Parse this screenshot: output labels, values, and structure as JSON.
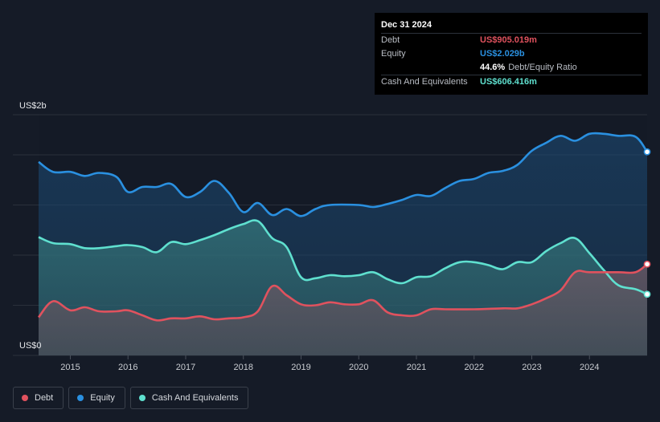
{
  "tooltip": {
    "date": "Dec 31 2024",
    "rows": [
      {
        "label": "Debt",
        "value": "US$905.019m",
        "color": "#e0525e"
      },
      {
        "label": "Equity",
        "value": "US$2.029b",
        "color": "#2a90e0"
      },
      {
        "label": "",
        "value": "44.6%",
        "sub": "Debt/Equity Ratio",
        "color": "#ffffff"
      },
      {
        "label": "Cash And Equivalents",
        "value": "US$606.416m",
        "color": "#5fe0cf"
      }
    ]
  },
  "legend": [
    {
      "label": "Debt",
      "color": "#e0525e"
    },
    {
      "label": "Equity",
      "color": "#2a90e0"
    },
    {
      "label": "Cash And Equivalents",
      "color": "#5fe0cf"
    }
  ],
  "chart_data": {
    "type": "area",
    "y_top_label": "US$2b",
    "y_bottom_label": "US$0",
    "ylim": [
      0,
      2.4
    ],
    "xlim": [
      2014.45,
      2025.0
    ],
    "xticks": [
      "2015",
      "2016",
      "2017",
      "2018",
      "2019",
      "2020",
      "2021",
      "2022",
      "2023",
      "2024"
    ],
    "grid": true,
    "legend_position": "bottom-left",
    "series": [
      {
        "name": "Equity",
        "color": "#2a90e0",
        "points": [
          [
            2014.45,
            1.93
          ],
          [
            2014.7,
            1.83
          ],
          [
            2015.0,
            1.83
          ],
          [
            2015.25,
            1.79
          ],
          [
            2015.5,
            1.82
          ],
          [
            2015.8,
            1.78
          ],
          [
            2016.0,
            1.63
          ],
          [
            2016.25,
            1.68
          ],
          [
            2016.5,
            1.68
          ],
          [
            2016.75,
            1.71
          ],
          [
            2017.0,
            1.58
          ],
          [
            2017.25,
            1.63
          ],
          [
            2017.5,
            1.74
          ],
          [
            2017.75,
            1.62
          ],
          [
            2018.0,
            1.43
          ],
          [
            2018.25,
            1.52
          ],
          [
            2018.5,
            1.4
          ],
          [
            2018.75,
            1.46
          ],
          [
            2019.0,
            1.39
          ],
          [
            2019.25,
            1.46
          ],
          [
            2019.5,
            1.5
          ],
          [
            2020.0,
            1.5
          ],
          [
            2020.25,
            1.48
          ],
          [
            2020.5,
            1.51
          ],
          [
            2020.75,
            1.55
          ],
          [
            2021.0,
            1.6
          ],
          [
            2021.25,
            1.59
          ],
          [
            2021.5,
            1.67
          ],
          [
            2021.75,
            1.74
          ],
          [
            2022.0,
            1.76
          ],
          [
            2022.25,
            1.82
          ],
          [
            2022.5,
            1.84
          ],
          [
            2022.75,
            1.9
          ],
          [
            2023.0,
            2.04
          ],
          [
            2023.25,
            2.12
          ],
          [
            2023.5,
            2.19
          ],
          [
            2023.75,
            2.14
          ],
          [
            2024.0,
            2.21
          ],
          [
            2024.25,
            2.21
          ],
          [
            2024.5,
            2.19
          ],
          [
            2024.8,
            2.18
          ],
          [
            2025.0,
            2.03
          ]
        ]
      },
      {
        "name": "Cash And Equivalents",
        "color": "#5fe0cf",
        "points": [
          [
            2014.45,
            1.18
          ],
          [
            2014.7,
            1.12
          ],
          [
            2015.0,
            1.11
          ],
          [
            2015.25,
            1.07
          ],
          [
            2015.5,
            1.07
          ],
          [
            2015.8,
            1.09
          ],
          [
            2016.0,
            1.1
          ],
          [
            2016.25,
            1.08
          ],
          [
            2016.5,
            1.03
          ],
          [
            2016.75,
            1.13
          ],
          [
            2017.0,
            1.11
          ],
          [
            2017.25,
            1.15
          ],
          [
            2017.5,
            1.2
          ],
          [
            2017.75,
            1.26
          ],
          [
            2018.0,
            1.31
          ],
          [
            2018.25,
            1.34
          ],
          [
            2018.5,
            1.17
          ],
          [
            2018.75,
            1.08
          ],
          [
            2019.0,
            0.78
          ],
          [
            2019.25,
            0.77
          ],
          [
            2019.5,
            0.8
          ],
          [
            2019.75,
            0.79
          ],
          [
            2020.0,
            0.8
          ],
          [
            2020.25,
            0.83
          ],
          [
            2020.5,
            0.76
          ],
          [
            2020.75,
            0.72
          ],
          [
            2021.0,
            0.78
          ],
          [
            2021.25,
            0.79
          ],
          [
            2021.5,
            0.87
          ],
          [
            2021.75,
            0.93
          ],
          [
            2022.0,
            0.93
          ],
          [
            2022.25,
            0.9
          ],
          [
            2022.5,
            0.86
          ],
          [
            2022.75,
            0.93
          ],
          [
            2023.0,
            0.93
          ],
          [
            2023.25,
            1.04
          ],
          [
            2023.5,
            1.12
          ],
          [
            2023.75,
            1.17
          ],
          [
            2024.0,
            1.02
          ],
          [
            2024.25,
            0.85
          ],
          [
            2024.5,
            0.7
          ],
          [
            2024.8,
            0.66
          ],
          [
            2025.0,
            0.61
          ]
        ]
      },
      {
        "name": "Debt",
        "color": "#e0525e",
        "points": [
          [
            2014.45,
            0.38
          ],
          [
            2014.7,
            0.54
          ],
          [
            2015.0,
            0.45
          ],
          [
            2015.25,
            0.48
          ],
          [
            2015.5,
            0.44
          ],
          [
            2015.8,
            0.44
          ],
          [
            2016.0,
            0.45
          ],
          [
            2016.25,
            0.4
          ],
          [
            2016.5,
            0.35
          ],
          [
            2016.75,
            0.37
          ],
          [
            2017.0,
            0.37
          ],
          [
            2017.25,
            0.39
          ],
          [
            2017.5,
            0.36
          ],
          [
            2017.75,
            0.37
          ],
          [
            2018.0,
            0.38
          ],
          [
            2018.25,
            0.44
          ],
          [
            2018.5,
            0.69
          ],
          [
            2018.75,
            0.6
          ],
          [
            2019.0,
            0.51
          ],
          [
            2019.25,
            0.5
          ],
          [
            2019.5,
            0.53
          ],
          [
            2019.75,
            0.51
          ],
          [
            2020.0,
            0.51
          ],
          [
            2020.25,
            0.55
          ],
          [
            2020.5,
            0.43
          ],
          [
            2020.75,
            0.4
          ],
          [
            2021.0,
            0.4
          ],
          [
            2021.25,
            0.46
          ],
          [
            2021.5,
            0.46
          ],
          [
            2022.0,
            0.46
          ],
          [
            2022.5,
            0.47
          ],
          [
            2022.75,
            0.47
          ],
          [
            2023.0,
            0.51
          ],
          [
            2023.25,
            0.57
          ],
          [
            2023.5,
            0.65
          ],
          [
            2023.75,
            0.83
          ],
          [
            2024.0,
            0.83
          ],
          [
            2024.5,
            0.83
          ],
          [
            2024.8,
            0.83
          ],
          [
            2025.0,
            0.91
          ]
        ]
      }
    ]
  }
}
